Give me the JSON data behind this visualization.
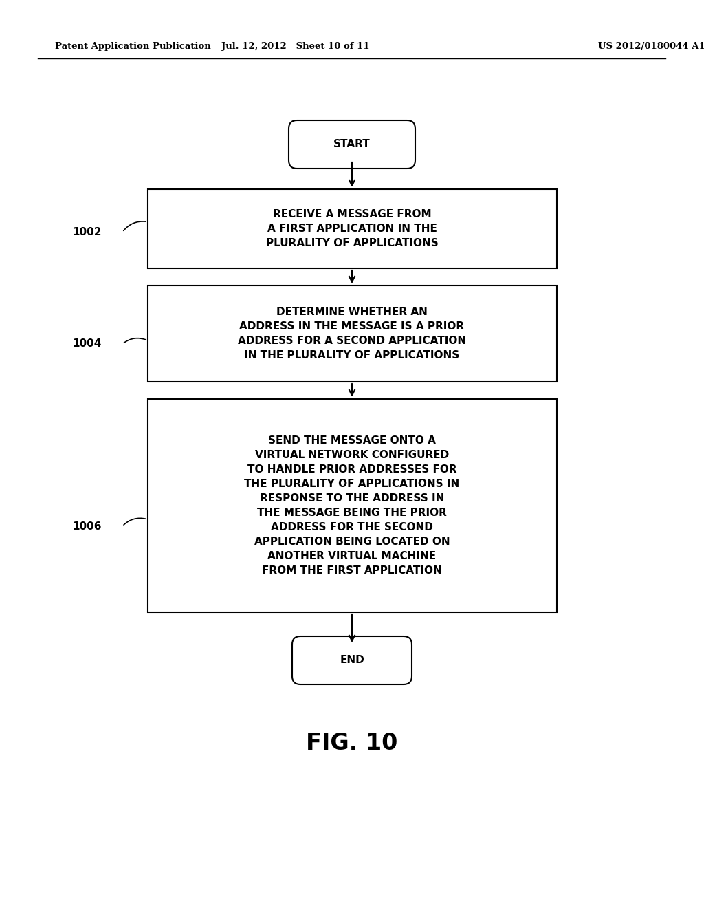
{
  "bg_color": "#ffffff",
  "header_left": "Patent Application Publication",
  "header_mid": "Jul. 12, 2012   Sheet 10 of 11",
  "header_right": "US 2012/0180044 A1",
  "header_fontsize": 9.5,
  "start_label": "START",
  "end_label": "END",
  "box1_label": "RECEIVE A MESSAGE FROM\nA FIRST APPLICATION IN THE\nPLURALITY OF APPLICATIONS",
  "box1_ref": "1002",
  "box2_label": "DETERMINE WHETHER AN\nADDRESS IN THE MESSAGE IS A PRIOR\nADDRESS FOR A SECOND APPLICATION\nIN THE PLURALITY OF APPLICATIONS",
  "box2_ref": "1004",
  "box3_label": "SEND THE MESSAGE ONTO A\nVIRTUAL NETWORK CONFIGURED\nTO HANDLE PRIOR ADDRESSES FOR\nTHE PLURALITY OF APPLICATIONS IN\nRESPONSE TO THE ADDRESS IN\nTHE MESSAGE BEING THE PRIOR\nADDRESS FOR THE SECOND\nAPPLICATION BEING LOCATED ON\nANOTHER VIRTUAL MACHINE\nFROM THE FIRST APPLICATION",
  "box3_ref": "1006",
  "caption": "FIG. 10",
  "caption_fontsize": 24,
  "text_fontsize": 11,
  "ref_fontsize": 11,
  "line_color": "#000000",
  "text_color": "#000000"
}
